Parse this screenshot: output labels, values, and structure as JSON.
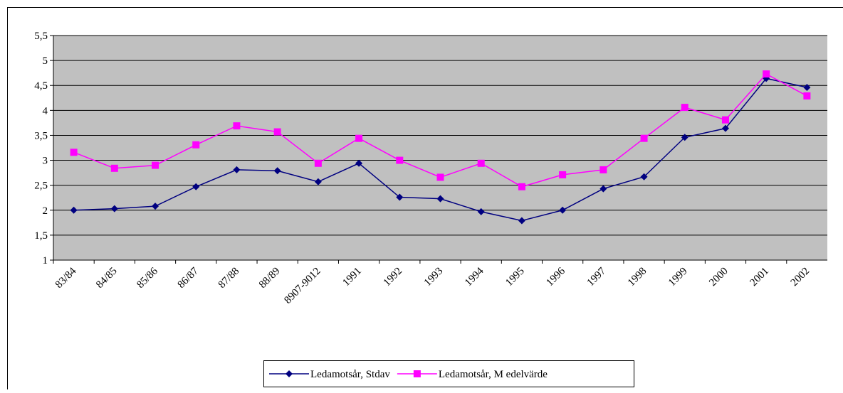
{
  "chart_data": {
    "type": "line",
    "categories": [
      "83/84",
      "84/85",
      "85/86",
      "86/87",
      "87/88",
      "88/89",
      "8907-9012",
      "1991",
      "1992",
      "1993",
      "1994",
      "1995",
      "1996",
      "1997",
      "1998",
      "1999",
      "2000",
      "2001",
      "2002"
    ],
    "series": [
      {
        "name": "Ledamotsår, Stdav",
        "color": "#000080",
        "marker": "diamond",
        "values": [
          2.0,
          2.03,
          2.08,
          2.47,
          2.81,
          2.79,
          2.57,
          2.94,
          2.26,
          2.23,
          1.97,
          1.79,
          2.0,
          2.43,
          2.67,
          3.46,
          3.64,
          4.64,
          4.46
        ]
      },
      {
        "name": "Ledamotsår, M edelvärde",
        "color": "#ff00ff",
        "marker": "square",
        "values": [
          3.16,
          2.84,
          2.9,
          3.31,
          3.69,
          3.57,
          2.94,
          3.44,
          3.0,
          2.66,
          2.94,
          2.47,
          2.71,
          2.81,
          3.44,
          4.06,
          3.81,
          4.73,
          4.29
        ]
      }
    ],
    "ylim": [
      1,
      5.5
    ],
    "yticks": [
      1,
      {
        "value": 1.5,
        "label": "1,5"
      },
      2,
      {
        "value": 2.5,
        "label": "2,5"
      },
      3,
      {
        "value": 3.5,
        "label": "3,5"
      },
      4,
      {
        "value": 4.5,
        "label": "4,5"
      },
      5,
      {
        "value": 5.5,
        "label": "5,5"
      }
    ],
    "grid": true,
    "legend": "bottom",
    "plot_background": "#c0c0c0"
  }
}
